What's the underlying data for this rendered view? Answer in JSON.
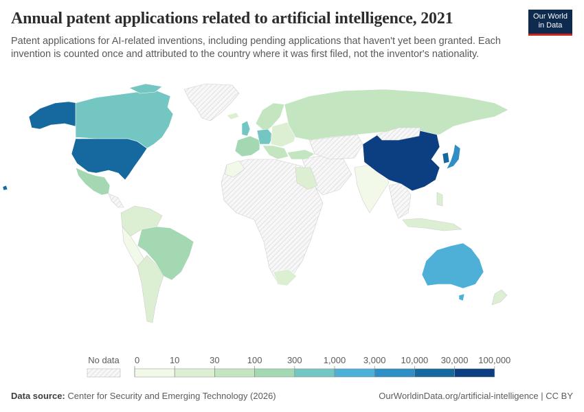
{
  "title": "Annual patent applications related to artificial intelligence, 2021",
  "subtitle": "Patent applications for AI-related inventions, including pending applications that haven't yet been granted. Each invention is counted once and attributed to the country where it was first filed, not the inventor's nationality.",
  "logo": {
    "line1": "Our World",
    "line2": "in Data"
  },
  "legend": {
    "no_data_label": "No data",
    "ticks": [
      "0",
      "10",
      "30",
      "100",
      "300",
      "1,000",
      "3,000",
      "10,000",
      "30,000",
      "100,000"
    ],
    "colors": [
      "#f3f9e8",
      "#dcefd3",
      "#c3e6c1",
      "#a3d8b3",
      "#73c6c1",
      "#4eb0d6",
      "#2f8fc4",
      "#15699f",
      "#0b3f81"
    ],
    "no_data_color": "#eeeeee"
  },
  "map": {
    "type": "choropleth",
    "indicator": "Annual patent applications related to artificial intelligence",
    "year": 2021,
    "regions": [
      {
        "name": "China",
        "bin": "30,000–100,000",
        "color": "#0b3f81"
      },
      {
        "name": "United States",
        "bin": "10,000–30,000",
        "color": "#15699f"
      },
      {
        "name": "Japan",
        "bin": "3,000–10,000",
        "color": "#2f8fc4"
      },
      {
        "name": "South Korea",
        "bin": "10,000–30,000",
        "color": "#15699f"
      },
      {
        "name": "Australia",
        "bin": "1,000–3,000",
        "color": "#4eb0d6"
      },
      {
        "name": "Canada",
        "bin": "300–1,000",
        "color": "#73c6c1"
      },
      {
        "name": "Germany",
        "bin": "300–1,000",
        "color": "#73c6c1"
      },
      {
        "name": "United Kingdom",
        "bin": "300–1,000",
        "color": "#73c6c1"
      },
      {
        "name": "Brazil",
        "bin": "100–300",
        "color": "#a3d8b3"
      },
      {
        "name": "Mexico",
        "bin": "100–300",
        "color": "#a3d8b3"
      },
      {
        "name": "Russia",
        "bin": "30–100",
        "color": "#c3e6c1"
      },
      {
        "name": "India",
        "bin": "0–10",
        "color": "#f3f9e8"
      },
      {
        "name": "South Africa",
        "bin": "10–30",
        "color": "#dcefd3"
      },
      {
        "name": "Greenland",
        "bin": "No data",
        "color": "#eeeeee"
      }
    ]
  },
  "footer": {
    "source_label": "Data source:",
    "source": "Center for Security and Emerging Technology (2026)",
    "url": "OurWorldinData.org/artificial-intelligence | CC BY"
  }
}
